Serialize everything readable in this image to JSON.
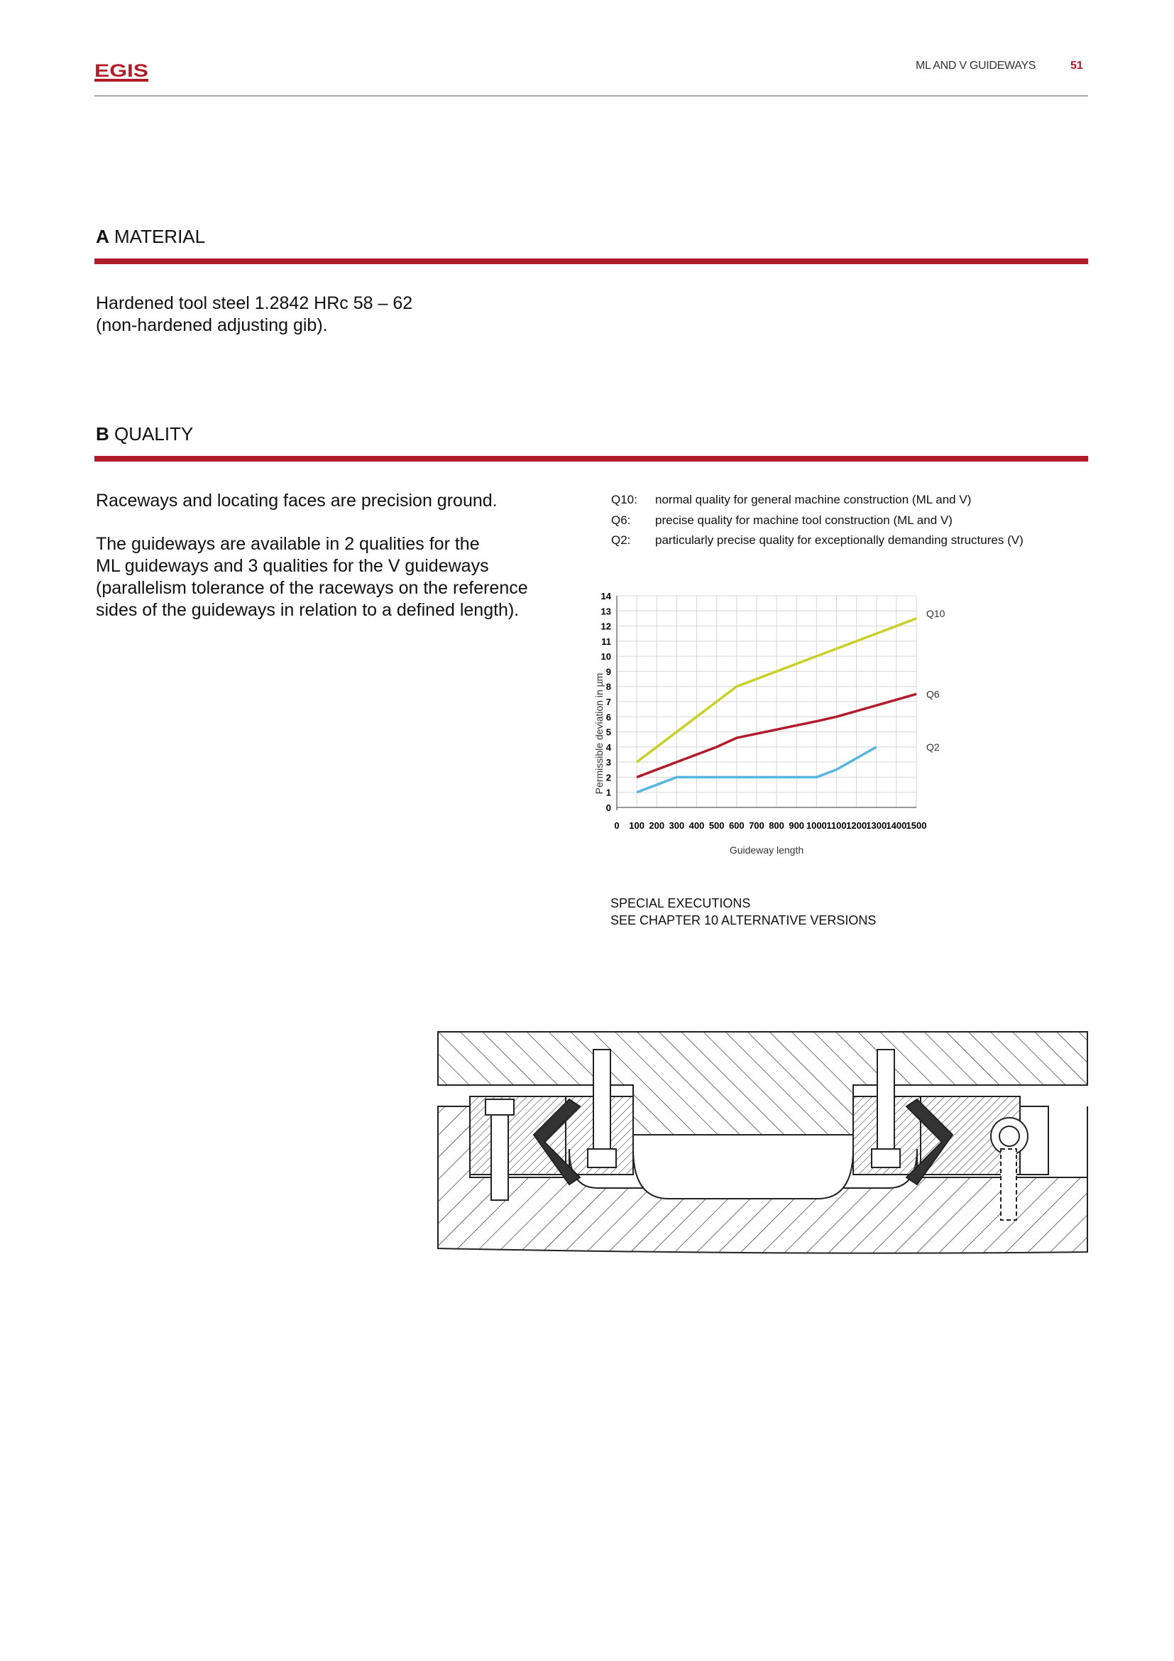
{
  "header": {
    "logo_text": "EGIS",
    "section_title": "ML AND V GUIDEWAYS",
    "page_number": "51"
  },
  "section_a": {
    "letter": "A",
    "title": "MATERIAL",
    "lines": [
      "Hardened tool steel 1.2842 HRc 58 – 62",
      "(non-hardened adjusting gib)."
    ]
  },
  "section_b": {
    "letter": "B",
    "title": "QUALITY",
    "paragraph1": "Raceways and locating faces are precision ground.",
    "paragraph2_lines": [
      "The guideways are available in 2 qualities for the",
      "ML guideways and 3 qualities for the V guideways",
      "(parallelism tolerance of the raceways on the reference",
      "sides of the guideways in relation to a defined length)."
    ]
  },
  "legend": [
    {
      "key": "Q10:",
      "text": "normal quality for general machine construction (ML and V)"
    },
    {
      "key": "Q6:",
      "text": "precise quality for machine tool construction (ML and V)"
    },
    {
      "key": "Q2:",
      "text": "particularly precise quality for exceptionally demanding structures (V)"
    }
  ],
  "chart_data": {
    "type": "line",
    "xlabel": "Guideway length",
    "ylabel": "Permissible deviation in µm",
    "xlim": [
      0,
      1500
    ],
    "ylim": [
      0,
      14
    ],
    "x_ticks": [
      0,
      100,
      200,
      300,
      400,
      500,
      600,
      700,
      800,
      900,
      1000,
      1100,
      1200,
      1300,
      1400,
      1500
    ],
    "y_ticks": [
      0,
      1,
      2,
      3,
      4,
      5,
      6,
      7,
      8,
      9,
      10,
      11,
      12,
      13,
      14
    ],
    "grid": true,
    "series": [
      {
        "name": "Q10",
        "color": "#c8d12a",
        "x": [
          100,
          300,
          600,
          1000,
          1500
        ],
        "y": [
          3,
          5,
          8,
          10,
          12.5
        ]
      },
      {
        "name": "Q6",
        "color": "#b01c2a",
        "x": [
          100,
          300,
          500,
          600,
          1000,
          1100,
          1500
        ],
        "y": [
          2,
          3,
          4,
          4.6,
          5.7,
          6,
          7.5
        ]
      },
      {
        "name": "Q2",
        "color": "#5ab4e0",
        "x": [
          100,
          300,
          1000,
          1100,
          1300
        ],
        "y": [
          1,
          2,
          2,
          2.5,
          4
        ]
      }
    ]
  },
  "special": {
    "line1": "SPECIAL EXECUTIONS",
    "line2": "SEE CHAPTER 10 ALTERNATIVE VERSIONS"
  }
}
